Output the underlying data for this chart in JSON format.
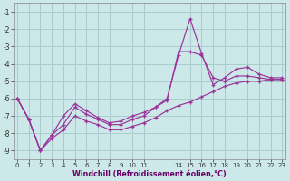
{
  "xlabel": "Windchill (Refroidissement éolien,°C)",
  "bg_color": "#cce8e8",
  "grid_color": "#aacccc",
  "line_color": "#993399",
  "xlim": [
    -0.3,
    23.3
  ],
  "ylim": [
    -9.5,
    -0.5
  ],
  "yticks": [
    -9,
    -8,
    -7,
    -6,
    -5,
    -4,
    -3,
    -2,
    -1
  ],
  "xtick_positions": [
    0,
    1,
    2,
    3,
    4,
    5,
    6,
    7,
    8,
    9,
    10,
    11,
    14,
    15,
    16,
    17,
    18,
    19,
    20,
    21,
    22,
    23
  ],
  "xtick_labels": [
    "0",
    "1",
    "2",
    "3",
    "4",
    "5",
    "6",
    "7",
    "8",
    "9",
    "10",
    "11",
    "14",
    "15",
    "16",
    "17",
    "18",
    "19",
    "20",
    "21",
    "22",
    "23"
  ],
  "line1_x": [
    0,
    1,
    2,
    3,
    4,
    5,
    6,
    7,
    8,
    9,
    10,
    11,
    12,
    13,
    14,
    15,
    16,
    17,
    18,
    19,
    20,
    21,
    22,
    23
  ],
  "line1_y": [
    -6.0,
    -7.2,
    -9.0,
    -8.1,
    -7.0,
    -6.3,
    -6.7,
    -7.1,
    -7.4,
    -7.3,
    -7.0,
    -6.8,
    -6.5,
    -6.1,
    -3.3,
    -3.3,
    -3.5,
    -4.8,
    -5.0,
    -4.7,
    -4.7,
    -4.8,
    -4.9,
    -4.9
  ],
  "line2_x": [
    0,
    1,
    2,
    3,
    4,
    5,
    6,
    7,
    8,
    9,
    10,
    11,
    12,
    13,
    14,
    15,
    16,
    17,
    18,
    19,
    20,
    21,
    22,
    23
  ],
  "line2_y": [
    -6.0,
    -7.2,
    -9.0,
    -8.1,
    -7.5,
    -6.5,
    -6.9,
    -7.2,
    -7.5,
    -7.5,
    -7.2,
    -7.0,
    -6.5,
    -6.0,
    -3.5,
    -1.4,
    -3.4,
    -5.2,
    -4.8,
    -4.3,
    -4.2,
    -4.6,
    -4.8,
    -4.8
  ],
  "line3_x": [
    0,
    1,
    2,
    3,
    4,
    5,
    6,
    7,
    8,
    9,
    10,
    11,
    12,
    13,
    14,
    15,
    16,
    17,
    18,
    19,
    20,
    21,
    22,
    23
  ],
  "line3_y": [
    -6.0,
    -7.2,
    -9.0,
    -8.3,
    -7.8,
    -7.0,
    -7.3,
    -7.5,
    -7.8,
    -7.8,
    -7.6,
    -7.4,
    -7.1,
    -6.7,
    -6.4,
    -6.2,
    -5.9,
    -5.6,
    -5.3,
    -5.1,
    -5.0,
    -5.0,
    -4.9,
    -4.9
  ]
}
